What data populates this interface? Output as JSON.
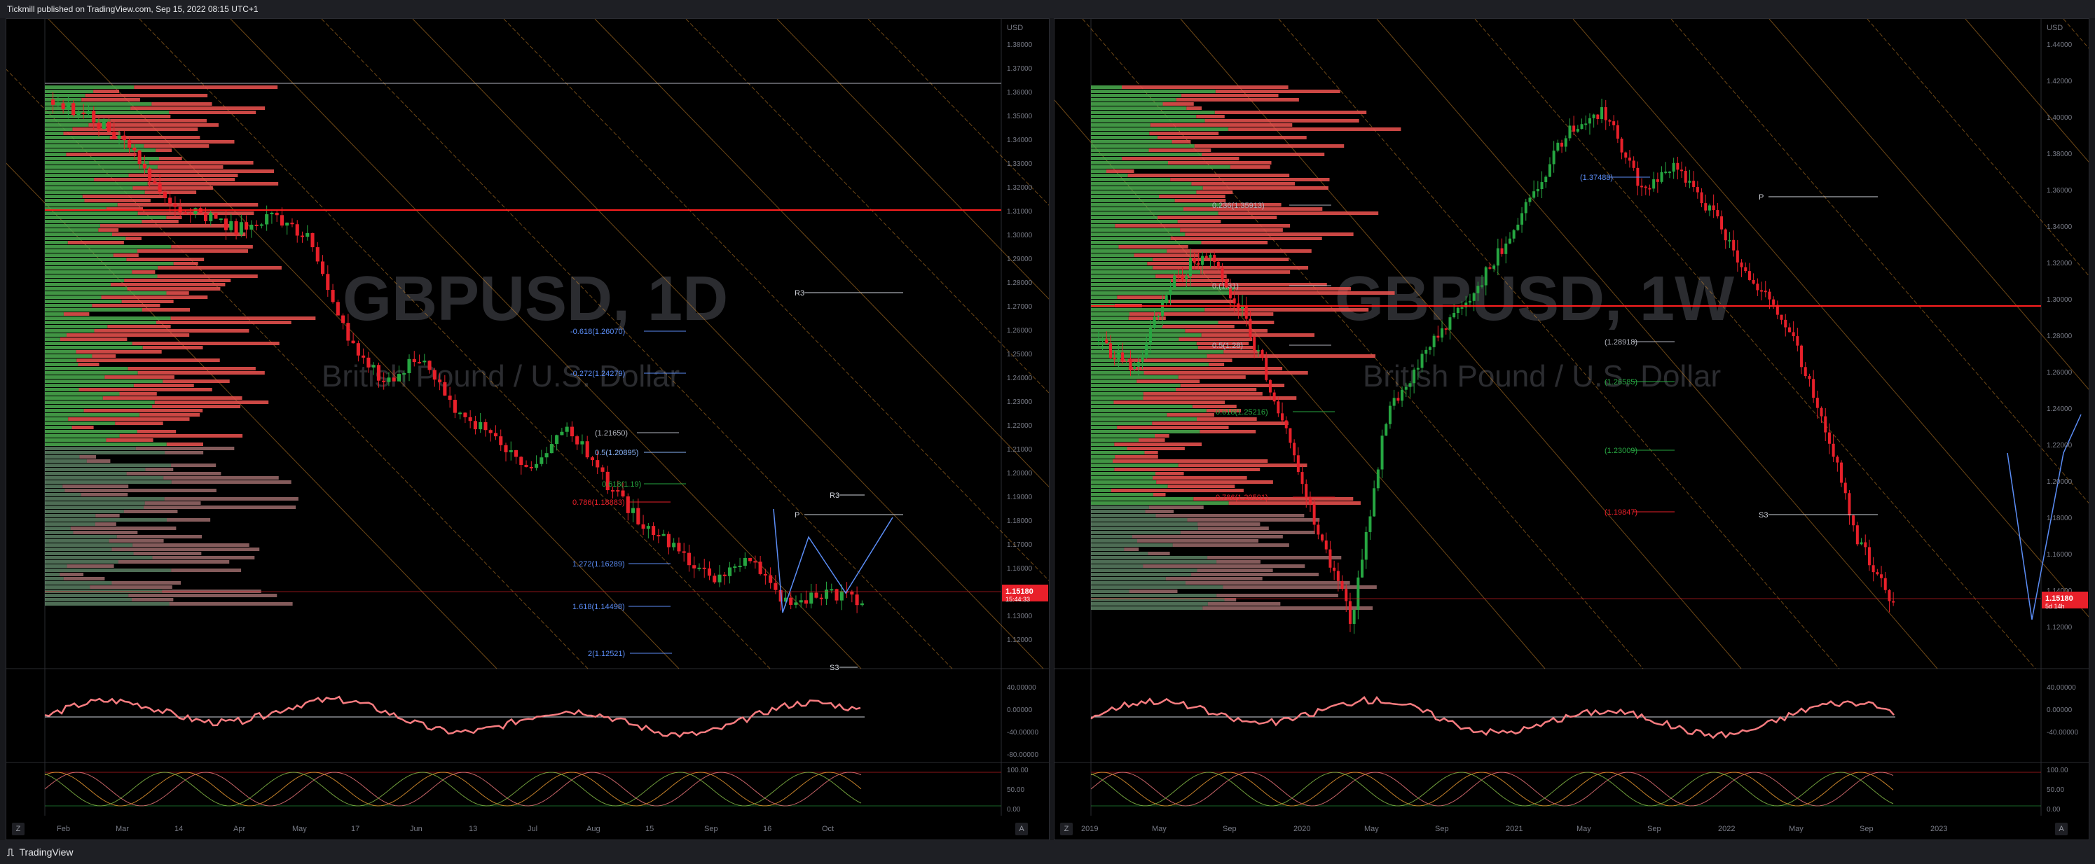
{
  "header": {
    "published": "Tickmill published on TradingView.com, Sep 15, 2022 08:15 UTC+1"
  },
  "footer": {
    "brand": "TradingView"
  },
  "left": {
    "watermark_symbol": "GBPUSD, 1D",
    "watermark_name": "British Pound / U.S. Dollar",
    "currency": "USD",
    "price_label": "1.15180",
    "countdown": "15:44:33",
    "price_ticks": [
      "1.38000",
      "1.37000",
      "1.36000",
      "1.35000",
      "1.34000",
      "1.33000",
      "1.32000",
      "1.31000",
      "1.30000",
      "1.29000",
      "1.28000",
      "1.27000",
      "1.26000",
      "1.25000",
      "1.24000",
      "1.23000",
      "1.22000",
      "1.21000",
      "1.20000",
      "1.19000",
      "1.18000",
      "1.17000",
      "1.16000",
      "1.14000",
      "1.13000",
      "1.12000"
    ],
    "osc1_ticks": [
      "40.00000",
      "0.00000",
      "-40.00000",
      "-80.00000"
    ],
    "osc2_ticks": [
      "100.00",
      "50.00",
      "0.00"
    ],
    "time_ticks": [
      "Feb",
      "Mar",
      "14",
      "Apr",
      "May",
      "17",
      "Jun",
      "13",
      "Jul",
      "Aug",
      "15",
      "Sep",
      "16",
      "Oct"
    ],
    "fib_labels": [
      "-0.618(1.26070)",
      "-0.272(1.24279)",
      "0.5(1.20895)",
      "0.618(1.19)",
      "0.786(1.18883)",
      "1.272(1.16289)",
      "1.618(1.14498)",
      "2(1.12521)",
      "(1.21650)"
    ],
    "pivot_labels": [
      "R3",
      "R3",
      "P",
      "S3"
    ],
    "buttons": {
      "z": "Z",
      "a": "A"
    }
  },
  "right": {
    "watermark_symbol": "GBPUSD, 1W",
    "watermark_name": "British Pound / U.S. Dollar",
    "currency": "USD",
    "price_label": "1.15180",
    "countdown": "5d 14h",
    "price_ticks": [
      "1.44000",
      "1.42000",
      "1.40000",
      "1.38000",
      "1.36000",
      "1.34000",
      "1.32000",
      "1.30000",
      "1.28000",
      "1.26000",
      "1.24000",
      "1.22000",
      "1.20000",
      "1.18000",
      "1.16000",
      "1.14000",
      "1.12000"
    ],
    "osc1_ticks": [
      "40.00000",
      "0.00000",
      "-40.00000"
    ],
    "osc2_ticks": [
      "100.00",
      "50.00",
      "0.00"
    ],
    "time_ticks": [
      "2019",
      "May",
      "Sep",
      "2020",
      "May",
      "Sep",
      "2021",
      "May",
      "Sep",
      "2022",
      "May",
      "Sep",
      "2023"
    ],
    "fib_labels": [
      "0.236(1.35913)",
      "0.(1.31)",
      "0.5(1.28)",
      "0.618(1.25216)",
      "0.786(1.20501)",
      "(1.37488)",
      "(1.28918)",
      "(1.26585)",
      "(1.23009)",
      "(1.19847)"
    ],
    "pivot_labels": [
      "P",
      "S3"
    ],
    "buttons": {
      "z": "Z",
      "a": "A"
    }
  },
  "colors": {
    "bull": "#26a641",
    "bear": "#e8202a",
    "fib_orange": "#f5a033",
    "blue": "#2962ff"
  }
}
